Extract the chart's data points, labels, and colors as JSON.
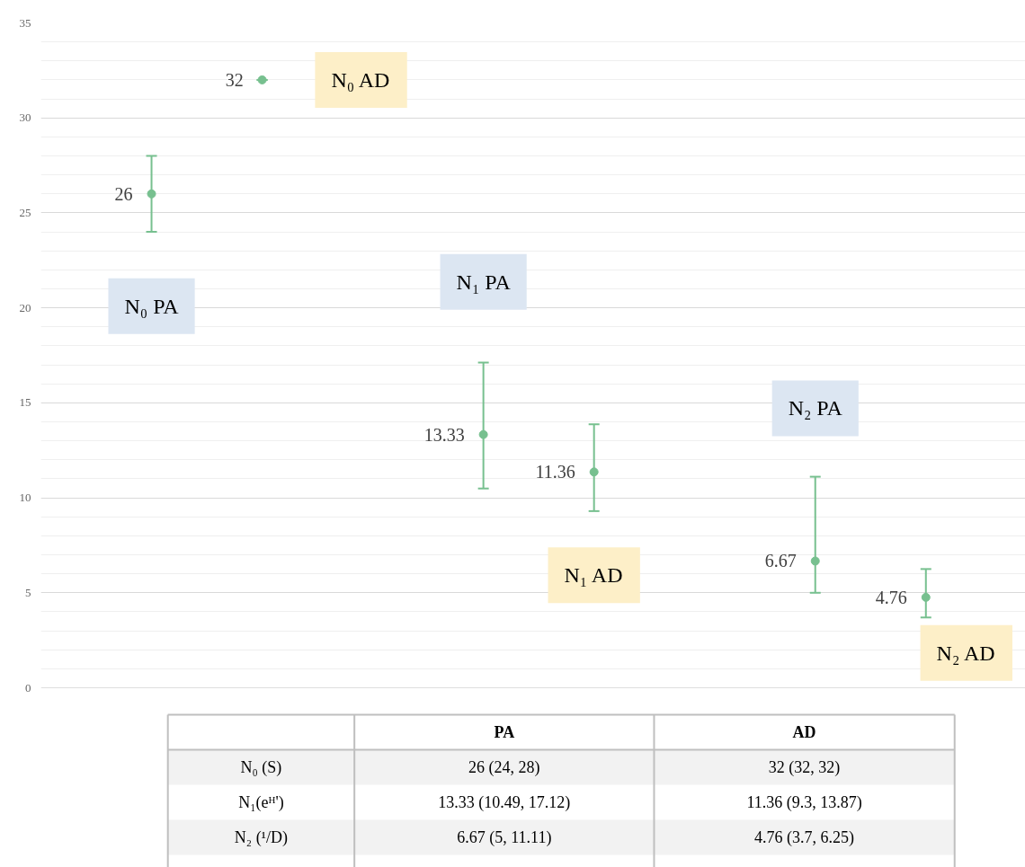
{
  "chart_data": {
    "type": "scatter",
    "categories": [
      null,
      null,
      null,
      null,
      null,
      null
    ],
    "series": [
      {
        "color": "#77c08f",
        "values": [
          26,
          32,
          13.33,
          11.36,
          6.67,
          4.76
        ],
        "errors": [
          [
            24,
            28
          ],
          [
            32,
            32
          ],
          [
            10.49,
            17.12
          ],
          [
            9.3,
            13.87
          ],
          [
            5,
            11.11
          ],
          [
            3.7,
            6.25
          ]
        ]
      }
    ],
    "ylim": [
      0,
      35
    ],
    "yticks": [
      0,
      5,
      10,
      15,
      20,
      25,
      30,
      35
    ],
    "grid": true,
    "marker": "circle",
    "data_labels": true,
    "tick_labels": "y",
    "annotations": [
      "N₀ PA",
      "N₀ AD",
      "N₁ PA",
      "N₁ AD",
      "N₂ PA",
      "N₂ AD",
      "PA",
      "AD",
      "N₀ (S)",
      "N₁(eᴴ')",
      "N₂ (¹/D)",
      "26 (24, 28)",
      "32 (32, 32)",
      "13.33 (10.49, 17.12)",
      "11.36 (9.3, 13.87)",
      "6.67 (5, 11.11)",
      "4.76 (3.7, 6.25)"
    ]
  }
}
